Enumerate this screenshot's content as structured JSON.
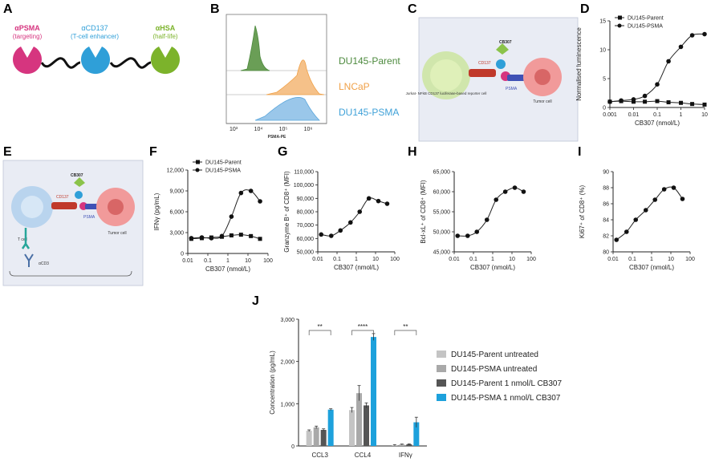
{
  "colors": {
    "psma": "#d6357f",
    "cd137": "#2f9fd8",
    "hsa": "#7cb32b",
    "dark": "#222222",
    "parent_green": "#4d8a3e",
    "lncap_orange": "#f0a148",
    "psma_blue": "#5aa6db",
    "j_lightgray": "#c4c4c4",
    "j_gray": "#a9a9a9",
    "j_darkgray": "#555555",
    "j_blue": "#1da1dc",
    "schematic_bg": "#e9ecf4"
  },
  "panels": {
    "A": {
      "letter": "A",
      "labels": [
        {
          "greek": "α",
          "name": "PSMA",
          "sub": "(targeting)"
        },
        {
          "greek": "α",
          "name": "CD137",
          "sub": "(T-cell enhancer)"
        },
        {
          "greek": "α",
          "name": "HSA",
          "sub": "(half-life)"
        }
      ]
    },
    "B": {
      "letter": "B",
      "xlabel": "PSMA-PE",
      "xticks": [
        "10³",
        "10⁴",
        "10⁵",
        "10⁶"
      ],
      "tracks": [
        "DU145-Parent",
        "LNCaP",
        "DU145-PSMA"
      ]
    },
    "C": {
      "letter": "C",
      "cb": "CB307",
      "cd137": "CD137",
      "psma": "PSMA",
      "reporter": "Jurkat- NFkB CD137 luciferase-based reporter cell",
      "tumor": "Tumor cell"
    },
    "D": {
      "letter": "D"
    },
    "E": {
      "letter": "E",
      "cb": "CB307",
      "cd137": "CD137",
      "psma": "PSMA",
      "tcell": "T cell",
      "tumor": "Tumor cell",
      "acd3": "αCD3"
    },
    "F": {
      "letter": "F"
    },
    "G": {
      "letter": "G"
    },
    "H": {
      "letter": "H"
    },
    "I": {
      "letter": "I"
    },
    "J": {
      "letter": "J"
    }
  },
  "chart_data": [
    {
      "id": "D",
      "type": "line",
      "xscale": "log",
      "xlabel": "CB307 (nmol/L)",
      "ylabel": "Normalised luminescence",
      "xlim": [
        0.001,
        10
      ],
      "xticks": [
        "0.001",
        "0.01",
        "0.1",
        "1",
        "10"
      ],
      "ylim": [
        0,
        15
      ],
      "yticks": [
        "0",
        "5",
        "10",
        "15"
      ],
      "series": [
        {
          "name": "DU145-Parent",
          "marker": "square",
          "x": [
            0.001,
            0.003,
            0.01,
            0.03,
            0.1,
            0.3,
            1,
            3,
            10
          ],
          "y": [
            1.0,
            1.1,
            1.0,
            1.0,
            1.1,
            0.9,
            0.8,
            0.6,
            0.5
          ]
        },
        {
          "name": "DU145-PSMA",
          "marker": "circle",
          "x": [
            0.001,
            0.003,
            0.01,
            0.03,
            0.1,
            0.3,
            1,
            3,
            10
          ],
          "y": [
            1.0,
            1.2,
            1.4,
            2.0,
            4.0,
            8.0,
            10.5,
            12.5,
            12.7
          ]
        }
      ]
    },
    {
      "id": "F",
      "type": "line",
      "xscale": "log",
      "xlabel": "CB307 (nmol/L)",
      "ylabel": "IFNγ (pg/mL)",
      "xlim": [
        0.01,
        100
      ],
      "xticks": [
        "0.01",
        "0.1",
        "1",
        "10",
        "100"
      ],
      "ylim": [
        0,
        12000
      ],
      "yticks": [
        "0",
        "3,000",
        "6,000",
        "9,000",
        "12,000"
      ],
      "series": [
        {
          "name": "DU145-Parent",
          "marker": "square",
          "x": [
            0.015,
            0.05,
            0.15,
            0.5,
            1.5,
            4.5,
            14,
            40
          ],
          "y": [
            2100,
            2200,
            2300,
            2400,
            2600,
            2700,
            2500,
            2100
          ]
        },
        {
          "name": "DU145-PSMA",
          "marker": "circle",
          "x": [
            0.015,
            0.05,
            0.15,
            0.5,
            1.5,
            4.5,
            14,
            40
          ],
          "y": [
            2200,
            2300,
            2200,
            2500,
            5300,
            8700,
            9000,
            7500
          ]
        }
      ]
    },
    {
      "id": "G",
      "type": "line",
      "xscale": "log",
      "xlabel": "CB307 (nmol/L)",
      "ylabel": "Granzyme B⁺ of CD8⁺ (MFI)",
      "xlim": [
        0.01,
        100
      ],
      "xticks": [
        "0.01",
        "0.1",
        "1",
        "10",
        "100"
      ],
      "ylim": [
        50000,
        110000
      ],
      "yticks": [
        "50,000",
        "60,000",
        "70,000",
        "80,000",
        "90,000",
        "100,000",
        "110,000"
      ],
      "series": [
        {
          "marker": "circle",
          "x": [
            0.015,
            0.05,
            0.15,
            0.5,
            1.5,
            4.5,
            14,
            40
          ],
          "y": [
            63000,
            62000,
            66000,
            72000,
            80000,
            90000,
            88000,
            86000
          ]
        }
      ]
    },
    {
      "id": "H",
      "type": "line",
      "xscale": "log",
      "xlabel": "CB307 (nmol/L)",
      "ylabel": "Bcl-xL⁺ of CD8⁺ (MFI)",
      "xlim": [
        0.01,
        100
      ],
      "xticks": [
        "0.01",
        "0.1",
        "1",
        "10",
        "100"
      ],
      "ylim": [
        45000,
        65000
      ],
      "yticks": [
        "45,000",
        "50,000",
        "55,000",
        "60,000",
        "65,000"
      ],
      "series": [
        {
          "marker": "circle",
          "x": [
            0.015,
            0.05,
            0.15,
            0.5,
            1.5,
            4.5,
            14,
            40
          ],
          "y": [
            49000,
            49000,
            50000,
            53000,
            58000,
            60000,
            61000,
            60000
          ]
        }
      ]
    },
    {
      "id": "I",
      "type": "line",
      "xscale": "log",
      "xlabel": "CB307 (nmol/L)",
      "ylabel": "Ki67⁺ of CD8⁺ (%)",
      "xlim": [
        0.01,
        100
      ],
      "xticks": [
        "0.01",
        "0.1",
        "1",
        "10",
        "100"
      ],
      "ylim": [
        80,
        90
      ],
      "yticks": [
        "80",
        "82",
        "84",
        "86",
        "88",
        "90"
      ],
      "series": [
        {
          "marker": "circle",
          "x": [
            0.015,
            0.05,
            0.15,
            0.5,
            1.5,
            4.5,
            14,
            40
          ],
          "y": [
            81.5,
            82.5,
            84.0,
            85.2,
            86.5,
            87.8,
            88.0,
            86.6
          ]
        }
      ]
    },
    {
      "id": "J",
      "type": "bar",
      "ylabel": "Concentration (pg/mL)",
      "ylim": [
        0,
        3000
      ],
      "yticks": [
        "0",
        "1,000",
        "2,000",
        "3,000"
      ],
      "categories": [
        "CCL3",
        "CCL4",
        "IFNγ"
      ],
      "significance": [
        "**",
        "****",
        "**"
      ],
      "series": [
        {
          "name": "DU145-Parent untreated",
          "color": "#c4c4c4",
          "values": [
            360,
            850,
            20
          ],
          "err": [
            20,
            60,
            10
          ]
        },
        {
          "name": "DU145-PSMA untreated",
          "color": "#a9a9a9",
          "values": [
            440,
            1250,
            35
          ],
          "err": [
            30,
            180,
            10
          ]
        },
        {
          "name": "DU145-Parent 1 nmol/L CB307",
          "color": "#555555",
          "values": [
            380,
            960,
            40
          ],
          "err": [
            25,
            60,
            10
          ]
        },
        {
          "name": "DU145-PSMA 1 nmol/L CB307",
          "color": "#1da1dc",
          "values": [
            860,
            2580,
            560
          ],
          "err": [
            20,
            80,
            120
          ]
        }
      ]
    }
  ]
}
